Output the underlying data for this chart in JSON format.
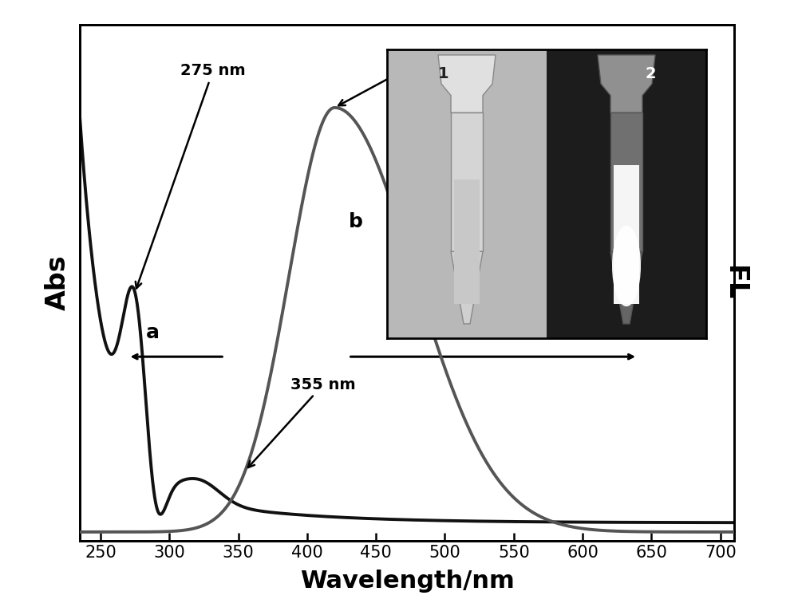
{
  "xlim": [
    235,
    710
  ],
  "xlabel": "Wavelength/nm",
  "ylabel_left": "Abs",
  "ylabel_right": "FL",
  "xticks": [
    250,
    300,
    350,
    400,
    450,
    500,
    550,
    600,
    650,
    700
  ],
  "curve_a_color": "#111111",
  "curve_b_color": "#555555",
  "background_color": "#ffffff",
  "annotation_fontsize": 14,
  "label_fontsize": 15,
  "axis_fontsize": 20,
  "linewidth": 2.8
}
